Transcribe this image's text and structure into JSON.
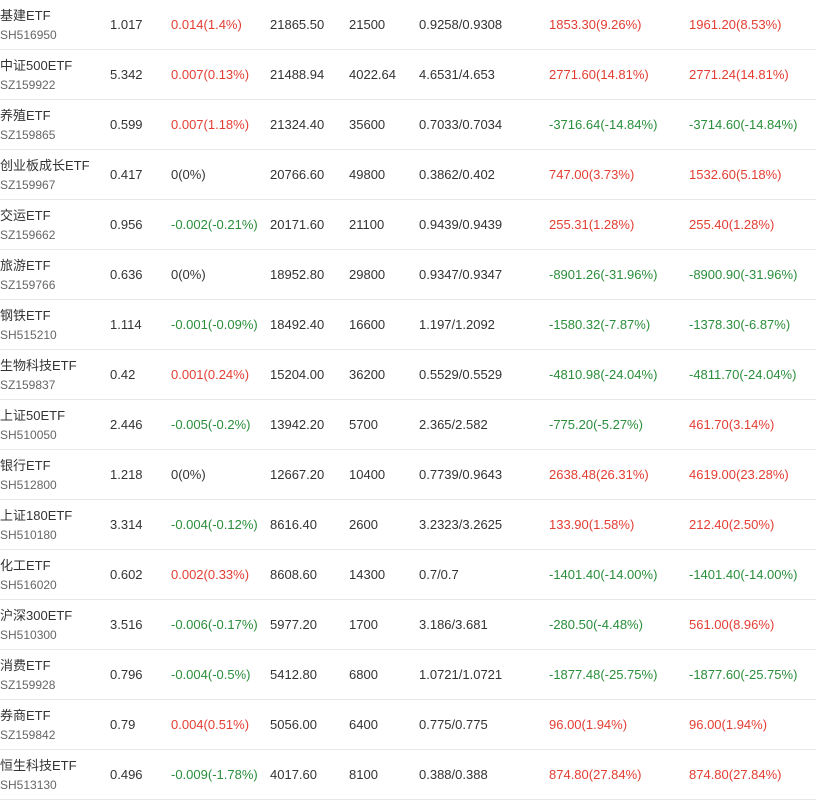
{
  "colors": {
    "up": "#e33e33",
    "down": "#2a8e3b",
    "flat": "#333333"
  },
  "rows": [
    {
      "name": "基建ETF",
      "code": "SH516950",
      "price": "1.017",
      "change": "0.014(1.4%)",
      "change_dir": "up",
      "value": "21865.50",
      "shares": "21500",
      "cost": "0.9258/0.9308",
      "pnl1": "1853.30(9.26%)",
      "pnl1_dir": "up",
      "pnl2": "1961.20(8.53%)",
      "pnl2_dir": "up"
    },
    {
      "name": "中证500ETF",
      "code": "SZ159922",
      "price": "5.342",
      "change": "0.007(0.13%)",
      "change_dir": "up",
      "value": "21488.94",
      "shares": "4022.64",
      "cost": "4.6531/4.653",
      "pnl1": "2771.60(14.81%)",
      "pnl1_dir": "up",
      "pnl2": "2771.24(14.81%)",
      "pnl2_dir": "up"
    },
    {
      "name": "养殖ETF",
      "code": "SZ159865",
      "price": "0.599",
      "change": "0.007(1.18%)",
      "change_dir": "up",
      "value": "21324.40",
      "shares": "35600",
      "cost": "0.7033/0.7034",
      "pnl1": "-3716.64(-14.84%)",
      "pnl1_dir": "down",
      "pnl2": "-3714.60(-14.84%)",
      "pnl2_dir": "down"
    },
    {
      "name": "创业板成长ETF",
      "code": "SZ159967",
      "price": "0.417",
      "change": "0(0%)",
      "change_dir": "flat",
      "value": "20766.60",
      "shares": "49800",
      "cost": "0.3862/0.402",
      "pnl1": "747.00(3.73%)",
      "pnl1_dir": "up",
      "pnl2": "1532.60(5.18%)",
      "pnl2_dir": "up"
    },
    {
      "name": "交运ETF",
      "code": "SZ159662",
      "price": "0.956",
      "change": "-0.002(-0.21%)",
      "change_dir": "down",
      "value": "20171.60",
      "shares": "21100",
      "cost": "0.9439/0.9439",
      "pnl1": "255.31(1.28%)",
      "pnl1_dir": "up",
      "pnl2": "255.40(1.28%)",
      "pnl2_dir": "up"
    },
    {
      "name": "旅游ETF",
      "code": "SZ159766",
      "price": "0.636",
      "change": "0(0%)",
      "change_dir": "flat",
      "value": "18952.80",
      "shares": "29800",
      "cost": "0.9347/0.9347",
      "pnl1": "-8901.26(-31.96%)",
      "pnl1_dir": "down",
      "pnl2": "-8900.90(-31.96%)",
      "pnl2_dir": "down"
    },
    {
      "name": "钢铁ETF",
      "code": "SH515210",
      "price": "1.114",
      "change": "-0.001(-0.09%)",
      "change_dir": "down",
      "value": "18492.40",
      "shares": "16600",
      "cost": "1.197/1.2092",
      "pnl1": "-1580.32(-7.87%)",
      "pnl1_dir": "down",
      "pnl2": "-1378.30(-6.87%)",
      "pnl2_dir": "down"
    },
    {
      "name": "生物科技ETF",
      "code": "SZ159837",
      "price": "0.42",
      "change": "0.001(0.24%)",
      "change_dir": "up",
      "value": "15204.00",
      "shares": "36200",
      "cost": "0.5529/0.5529",
      "pnl1": "-4810.98(-24.04%)",
      "pnl1_dir": "down",
      "pnl2": "-4811.70(-24.04%)",
      "pnl2_dir": "down"
    },
    {
      "name": "上证50ETF",
      "code": "SH510050",
      "price": "2.446",
      "change": "-0.005(-0.2%)",
      "change_dir": "down",
      "value": "13942.20",
      "shares": "5700",
      "cost": "2.365/2.582",
      "pnl1": "-775.20(-5.27%)",
      "pnl1_dir": "down",
      "pnl2": "461.70(3.14%)",
      "pnl2_dir": "up"
    },
    {
      "name": "银行ETF",
      "code": "SH512800",
      "price": "1.218",
      "change": "0(0%)",
      "change_dir": "flat",
      "value": "12667.20",
      "shares": "10400",
      "cost": "0.7739/0.9643",
      "pnl1": "2638.48(26.31%)",
      "pnl1_dir": "up",
      "pnl2": "4619.00(23.28%)",
      "pnl2_dir": "up"
    },
    {
      "name": "上证180ETF",
      "code": "SH510180",
      "price": "3.314",
      "change": "-0.004(-0.12%)",
      "change_dir": "down",
      "value": "8616.40",
      "shares": "2600",
      "cost": "3.2323/3.2625",
      "pnl1": "133.90(1.58%)",
      "pnl1_dir": "up",
      "pnl2": "212.40(2.50%)",
      "pnl2_dir": "up"
    },
    {
      "name": "化工ETF",
      "code": "SH516020",
      "price": "0.602",
      "change": "0.002(0.33%)",
      "change_dir": "up",
      "value": "8608.60",
      "shares": "14300",
      "cost": "0.7/0.7",
      "pnl1": "-1401.40(-14.00%)",
      "pnl1_dir": "down",
      "pnl2": "-1401.40(-14.00%)",
      "pnl2_dir": "down"
    },
    {
      "name": "沪深300ETF",
      "code": "SH510300",
      "price": "3.516",
      "change": "-0.006(-0.17%)",
      "change_dir": "down",
      "value": "5977.20",
      "shares": "1700",
      "cost": "3.186/3.681",
      "pnl1": "-280.50(-4.48%)",
      "pnl1_dir": "down",
      "pnl2": "561.00(8.96%)",
      "pnl2_dir": "up"
    },
    {
      "name": "消费ETF",
      "code": "SZ159928",
      "price": "0.796",
      "change": "-0.004(-0.5%)",
      "change_dir": "down",
      "value": "5412.80",
      "shares": "6800",
      "cost": "1.0721/1.0721",
      "pnl1": "-1877.48(-25.75%)",
      "pnl1_dir": "down",
      "pnl2": "-1877.60(-25.75%)",
      "pnl2_dir": "down"
    },
    {
      "name": "券商ETF",
      "code": "SZ159842",
      "price": "0.79",
      "change": "0.004(0.51%)",
      "change_dir": "up",
      "value": "5056.00",
      "shares": "6400",
      "cost": "0.775/0.775",
      "pnl1": "96.00(1.94%)",
      "pnl1_dir": "up",
      "pnl2": "96.00(1.94%)",
      "pnl2_dir": "up"
    },
    {
      "name": "恒生科技ETF",
      "code": "SH513130",
      "price": "0.496",
      "change": "-0.009(-1.78%)",
      "change_dir": "down",
      "value": "4017.60",
      "shares": "8100",
      "cost": "0.388/0.388",
      "pnl1": "874.80(27.84%)",
      "pnl1_dir": "up",
      "pnl2": "874.80(27.84%)",
      "pnl2_dir": "up"
    }
  ]
}
